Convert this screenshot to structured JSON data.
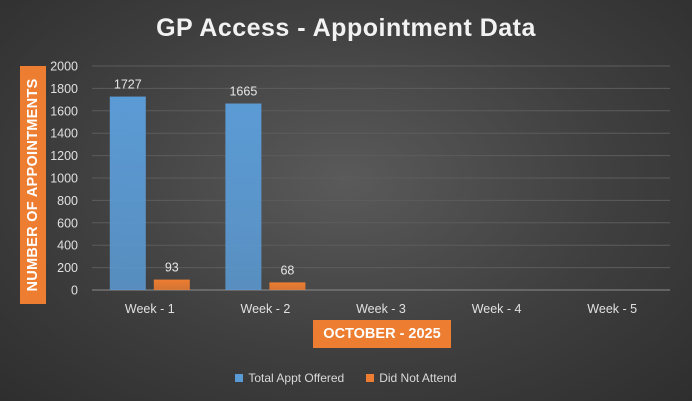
{
  "chart_data": {
    "type": "bar",
    "title": "GP Access - Appointment Data",
    "xlabel": "OCTOBER - 2025",
    "ylabel": "NUMBER OF APPOINTMENTS",
    "categories": [
      "Week - 1",
      "Week - 2",
      "Week - 3",
      "Week - 4",
      "Week - 5"
    ],
    "series": [
      {
        "name": "Total Appt Offered",
        "color": "#5b9bd5",
        "values": [
          1727,
          1665,
          null,
          null,
          null
        ]
      },
      {
        "name": "Did Not Attend",
        "color": "#ed7d31",
        "values": [
          93,
          68,
          null,
          null,
          null
        ]
      }
    ],
    "ylim": [
      0,
      2000
    ],
    "yticks": [
      0,
      200,
      400,
      600,
      800,
      1000,
      1200,
      1400,
      1600,
      1800,
      2000
    ],
    "grid": true,
    "legend": "bottom"
  }
}
